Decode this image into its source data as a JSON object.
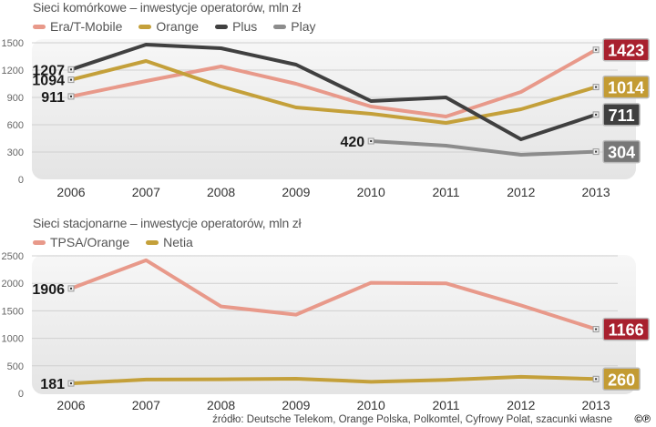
{
  "charts": [
    {
      "title": "Sieci komórkowe – inwestycje operatorów, mln zł",
      "legend": [
        "Era/T-Mobile",
        "Orange",
        "Plus",
        "Play"
      ]
    },
    {
      "title": "Sieci stacjonarne – inwestycje operatorów, mln zł",
      "legend": [
        "TPSA/Orange",
        "Netia"
      ]
    }
  ],
  "source": "źródło: Deutsche Telekom, Orange Polska, Polkomtel, Cyfrowy Polat, szacunki własne",
  "copyright_mark": "©℗",
  "chart_data": [
    {
      "type": "line",
      "title": "Sieci komórkowe – inwestycje operatorów, mln zł",
      "xlabel": "",
      "ylabel": "",
      "categories": [
        "2006",
        "2007",
        "2008",
        "2009",
        "2010",
        "2011",
        "2012",
        "2013"
      ],
      "yticks": [
        0,
        300,
        600,
        900,
        1200,
        1500
      ],
      "ylim": [
        0,
        1500
      ],
      "grid": true,
      "legend_position": "top-left",
      "series": [
        {
          "name": "Era/T-Mobile",
          "color": "#E8998A",
          "label_color": "#A8202E",
          "values": [
            911,
            1080,
            1240,
            1050,
            800,
            690,
            960,
            1423
          ],
          "start_label": "911",
          "end_label": "1423"
        },
        {
          "name": "Orange",
          "color": "#C4A03A",
          "label_color": "#C39B33",
          "values": [
            1094,
            1300,
            1020,
            790,
            720,
            620,
            770,
            1014
          ],
          "start_label": "1094",
          "end_label": "1014"
        },
        {
          "name": "Plus",
          "color": "#404040",
          "label_color": "#3F3F3F",
          "values": [
            1207,
            1480,
            1440,
            1260,
            860,
            900,
            440,
            711
          ],
          "start_label": "1207",
          "end_label": "711"
        },
        {
          "name": "Play",
          "color": "#8C8C8C",
          "label_color": "#777777",
          "values": [
            null,
            null,
            null,
            null,
            420,
            370,
            270,
            304
          ],
          "start_label": "420",
          "end_label": "304"
        }
      ]
    },
    {
      "type": "line",
      "title": "Sieci stacjonarne – inwestycje operatorów, mln zł",
      "xlabel": "",
      "ylabel": "",
      "categories": [
        "2006",
        "2007",
        "2008",
        "2009",
        "2010",
        "2011",
        "2012",
        "2013"
      ],
      "yticks": [
        0,
        500,
        1000,
        1500,
        2000,
        2500
      ],
      "ylim": [
        0,
        2500
      ],
      "grid": true,
      "legend_position": "top-left",
      "series": [
        {
          "name": "TPSA/Orange",
          "color": "#E8998A",
          "label_color": "#A8202E",
          "values": [
            1906,
            2420,
            1580,
            1430,
            2010,
            2000,
            1600,
            1166
          ],
          "start_label": "1906",
          "end_label": "1166"
        },
        {
          "name": "Netia",
          "color": "#C4A03A",
          "label_color": "#C39B33",
          "values": [
            181,
            250,
            255,
            265,
            210,
            245,
            300,
            260
          ],
          "start_label": "181",
          "end_label": "260"
        }
      ]
    }
  ]
}
